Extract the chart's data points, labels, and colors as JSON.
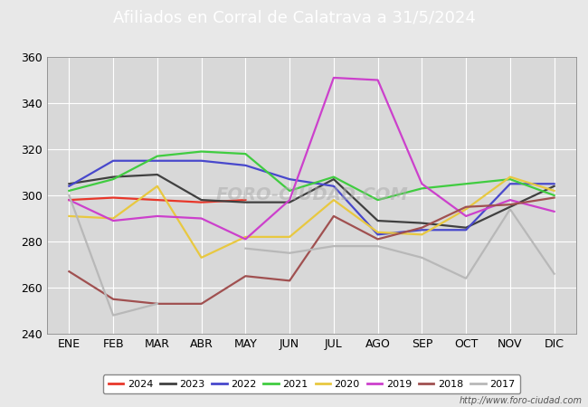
{
  "title": "Afiliados en Corral de Calatrava a 31/5/2024",
  "months": [
    "ENE",
    "FEB",
    "MAR",
    "ABR",
    "MAY",
    "JUN",
    "JUL",
    "AGO",
    "SEP",
    "OCT",
    "NOV",
    "DIC"
  ],
  "ylim": [
    240,
    360
  ],
  "yticks": [
    240,
    260,
    280,
    300,
    320,
    340,
    360
  ],
  "series": {
    "2024": {
      "color": "#e8372a",
      "values": [
        298,
        299,
        298,
        297,
        298,
        null,
        null,
        null,
        null,
        null,
        null,
        null
      ]
    },
    "2023": {
      "color": "#404040",
      "values": [
        305,
        308,
        309,
        298,
        297,
        297,
        307,
        289,
        288,
        286,
        295,
        304
      ]
    },
    "2022": {
      "color": "#4848cc",
      "values": [
        304,
        315,
        315,
        315,
        313,
        307,
        304,
        283,
        285,
        285,
        305,
        305
      ]
    },
    "2021": {
      "color": "#40cc40",
      "values": [
        302,
        307,
        317,
        319,
        318,
        302,
        308,
        298,
        303,
        305,
        307,
        300
      ]
    },
    "2020": {
      "color": "#e8c840",
      "values": [
        291,
        290,
        304,
        273,
        282,
        282,
        298,
        284,
        283,
        294,
        308,
        302
      ]
    },
    "2019": {
      "color": "#cc40cc",
      "values": [
        298,
        289,
        291,
        290,
        281,
        298,
        351,
        350,
        305,
        291,
        298,
        293
      ]
    },
    "2018": {
      "color": "#a05050",
      "values": [
        267,
        255,
        253,
        253,
        265,
        263,
        291,
        281,
        286,
        295,
        296,
        299
      ]
    },
    "2017": {
      "color": "#b8b8b8",
      "values": [
        300,
        248,
        253,
        null,
        277,
        275,
        278,
        278,
        273,
        264,
        294,
        266
      ]
    }
  },
  "series_order": [
    "2024",
    "2023",
    "2022",
    "2021",
    "2020",
    "2019",
    "2018",
    "2017"
  ],
  "watermark": "FORO-CIUDAD.COM",
  "url": "http://www.foro-ciudad.com",
  "bg_color": "#e8e8e8",
  "plot_bg_color": "#d8d8d8",
  "title_bg_color": "#4d8fcc",
  "title_fontsize": 13,
  "tick_fontsize": 9,
  "legend_fontsize": 8,
  "url_fontsize": 7,
  "linewidth": 1.6
}
